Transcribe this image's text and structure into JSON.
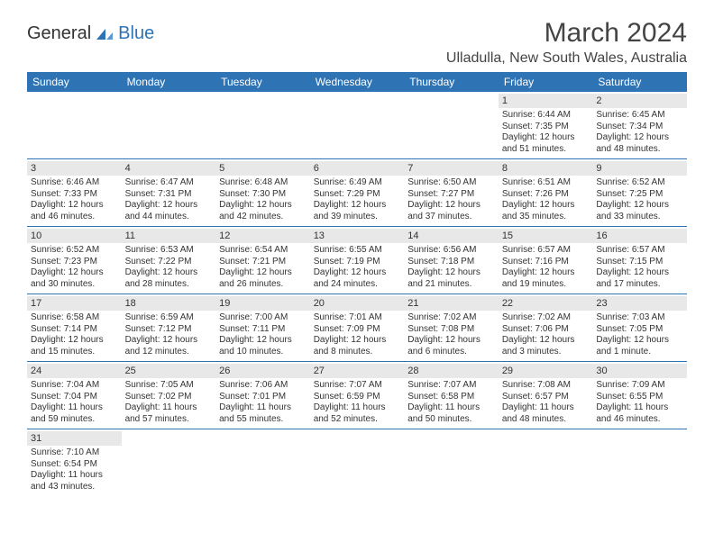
{
  "logo": {
    "general": "General",
    "blue": "Blue"
  },
  "title": "March 2024",
  "location": "Ulladulla, New South Wales, Australia",
  "days_of_week": [
    "Sunday",
    "Monday",
    "Tuesday",
    "Wednesday",
    "Thursday",
    "Friday",
    "Saturday"
  ],
  "colors": {
    "header_bg": "#2e74b5",
    "header_text": "#ffffff",
    "daynum_bg": "#e8e8e8",
    "border": "#2e74b5",
    "text": "#333333"
  },
  "weeks": [
    [
      null,
      null,
      null,
      null,
      null,
      {
        "n": "1",
        "sr": "Sunrise: 6:44 AM",
        "ss": "Sunset: 7:35 PM",
        "d1": "Daylight: 12 hours",
        "d2": "and 51 minutes."
      },
      {
        "n": "2",
        "sr": "Sunrise: 6:45 AM",
        "ss": "Sunset: 7:34 PM",
        "d1": "Daylight: 12 hours",
        "d2": "and 48 minutes."
      }
    ],
    [
      {
        "n": "3",
        "sr": "Sunrise: 6:46 AM",
        "ss": "Sunset: 7:33 PM",
        "d1": "Daylight: 12 hours",
        "d2": "and 46 minutes."
      },
      {
        "n": "4",
        "sr": "Sunrise: 6:47 AM",
        "ss": "Sunset: 7:31 PM",
        "d1": "Daylight: 12 hours",
        "d2": "and 44 minutes."
      },
      {
        "n": "5",
        "sr": "Sunrise: 6:48 AM",
        "ss": "Sunset: 7:30 PM",
        "d1": "Daylight: 12 hours",
        "d2": "and 42 minutes."
      },
      {
        "n": "6",
        "sr": "Sunrise: 6:49 AM",
        "ss": "Sunset: 7:29 PM",
        "d1": "Daylight: 12 hours",
        "d2": "and 39 minutes."
      },
      {
        "n": "7",
        "sr": "Sunrise: 6:50 AM",
        "ss": "Sunset: 7:27 PM",
        "d1": "Daylight: 12 hours",
        "d2": "and 37 minutes."
      },
      {
        "n": "8",
        "sr": "Sunrise: 6:51 AM",
        "ss": "Sunset: 7:26 PM",
        "d1": "Daylight: 12 hours",
        "d2": "and 35 minutes."
      },
      {
        "n": "9",
        "sr": "Sunrise: 6:52 AM",
        "ss": "Sunset: 7:25 PM",
        "d1": "Daylight: 12 hours",
        "d2": "and 33 minutes."
      }
    ],
    [
      {
        "n": "10",
        "sr": "Sunrise: 6:52 AM",
        "ss": "Sunset: 7:23 PM",
        "d1": "Daylight: 12 hours",
        "d2": "and 30 minutes."
      },
      {
        "n": "11",
        "sr": "Sunrise: 6:53 AM",
        "ss": "Sunset: 7:22 PM",
        "d1": "Daylight: 12 hours",
        "d2": "and 28 minutes."
      },
      {
        "n": "12",
        "sr": "Sunrise: 6:54 AM",
        "ss": "Sunset: 7:21 PM",
        "d1": "Daylight: 12 hours",
        "d2": "and 26 minutes."
      },
      {
        "n": "13",
        "sr": "Sunrise: 6:55 AM",
        "ss": "Sunset: 7:19 PM",
        "d1": "Daylight: 12 hours",
        "d2": "and 24 minutes."
      },
      {
        "n": "14",
        "sr": "Sunrise: 6:56 AM",
        "ss": "Sunset: 7:18 PM",
        "d1": "Daylight: 12 hours",
        "d2": "and 21 minutes."
      },
      {
        "n": "15",
        "sr": "Sunrise: 6:57 AM",
        "ss": "Sunset: 7:16 PM",
        "d1": "Daylight: 12 hours",
        "d2": "and 19 minutes."
      },
      {
        "n": "16",
        "sr": "Sunrise: 6:57 AM",
        "ss": "Sunset: 7:15 PM",
        "d1": "Daylight: 12 hours",
        "d2": "and 17 minutes."
      }
    ],
    [
      {
        "n": "17",
        "sr": "Sunrise: 6:58 AM",
        "ss": "Sunset: 7:14 PM",
        "d1": "Daylight: 12 hours",
        "d2": "and 15 minutes."
      },
      {
        "n": "18",
        "sr": "Sunrise: 6:59 AM",
        "ss": "Sunset: 7:12 PM",
        "d1": "Daylight: 12 hours",
        "d2": "and 12 minutes."
      },
      {
        "n": "19",
        "sr": "Sunrise: 7:00 AM",
        "ss": "Sunset: 7:11 PM",
        "d1": "Daylight: 12 hours",
        "d2": "and 10 minutes."
      },
      {
        "n": "20",
        "sr": "Sunrise: 7:01 AM",
        "ss": "Sunset: 7:09 PM",
        "d1": "Daylight: 12 hours",
        "d2": "and 8 minutes."
      },
      {
        "n": "21",
        "sr": "Sunrise: 7:02 AM",
        "ss": "Sunset: 7:08 PM",
        "d1": "Daylight: 12 hours",
        "d2": "and 6 minutes."
      },
      {
        "n": "22",
        "sr": "Sunrise: 7:02 AM",
        "ss": "Sunset: 7:06 PM",
        "d1": "Daylight: 12 hours",
        "d2": "and 3 minutes."
      },
      {
        "n": "23",
        "sr": "Sunrise: 7:03 AM",
        "ss": "Sunset: 7:05 PM",
        "d1": "Daylight: 12 hours",
        "d2": "and 1 minute."
      }
    ],
    [
      {
        "n": "24",
        "sr": "Sunrise: 7:04 AM",
        "ss": "Sunset: 7:04 PM",
        "d1": "Daylight: 11 hours",
        "d2": "and 59 minutes."
      },
      {
        "n": "25",
        "sr": "Sunrise: 7:05 AM",
        "ss": "Sunset: 7:02 PM",
        "d1": "Daylight: 11 hours",
        "d2": "and 57 minutes."
      },
      {
        "n": "26",
        "sr": "Sunrise: 7:06 AM",
        "ss": "Sunset: 7:01 PM",
        "d1": "Daylight: 11 hours",
        "d2": "and 55 minutes."
      },
      {
        "n": "27",
        "sr": "Sunrise: 7:07 AM",
        "ss": "Sunset: 6:59 PM",
        "d1": "Daylight: 11 hours",
        "d2": "and 52 minutes."
      },
      {
        "n": "28",
        "sr": "Sunrise: 7:07 AM",
        "ss": "Sunset: 6:58 PM",
        "d1": "Daylight: 11 hours",
        "d2": "and 50 minutes."
      },
      {
        "n": "29",
        "sr": "Sunrise: 7:08 AM",
        "ss": "Sunset: 6:57 PM",
        "d1": "Daylight: 11 hours",
        "d2": "and 48 minutes."
      },
      {
        "n": "30",
        "sr": "Sunrise: 7:09 AM",
        "ss": "Sunset: 6:55 PM",
        "d1": "Daylight: 11 hours",
        "d2": "and 46 minutes."
      }
    ],
    [
      {
        "n": "31",
        "sr": "Sunrise: 7:10 AM",
        "ss": "Sunset: 6:54 PM",
        "d1": "Daylight: 11 hours",
        "d2": "and 43 minutes."
      },
      null,
      null,
      null,
      null,
      null,
      null
    ]
  ]
}
